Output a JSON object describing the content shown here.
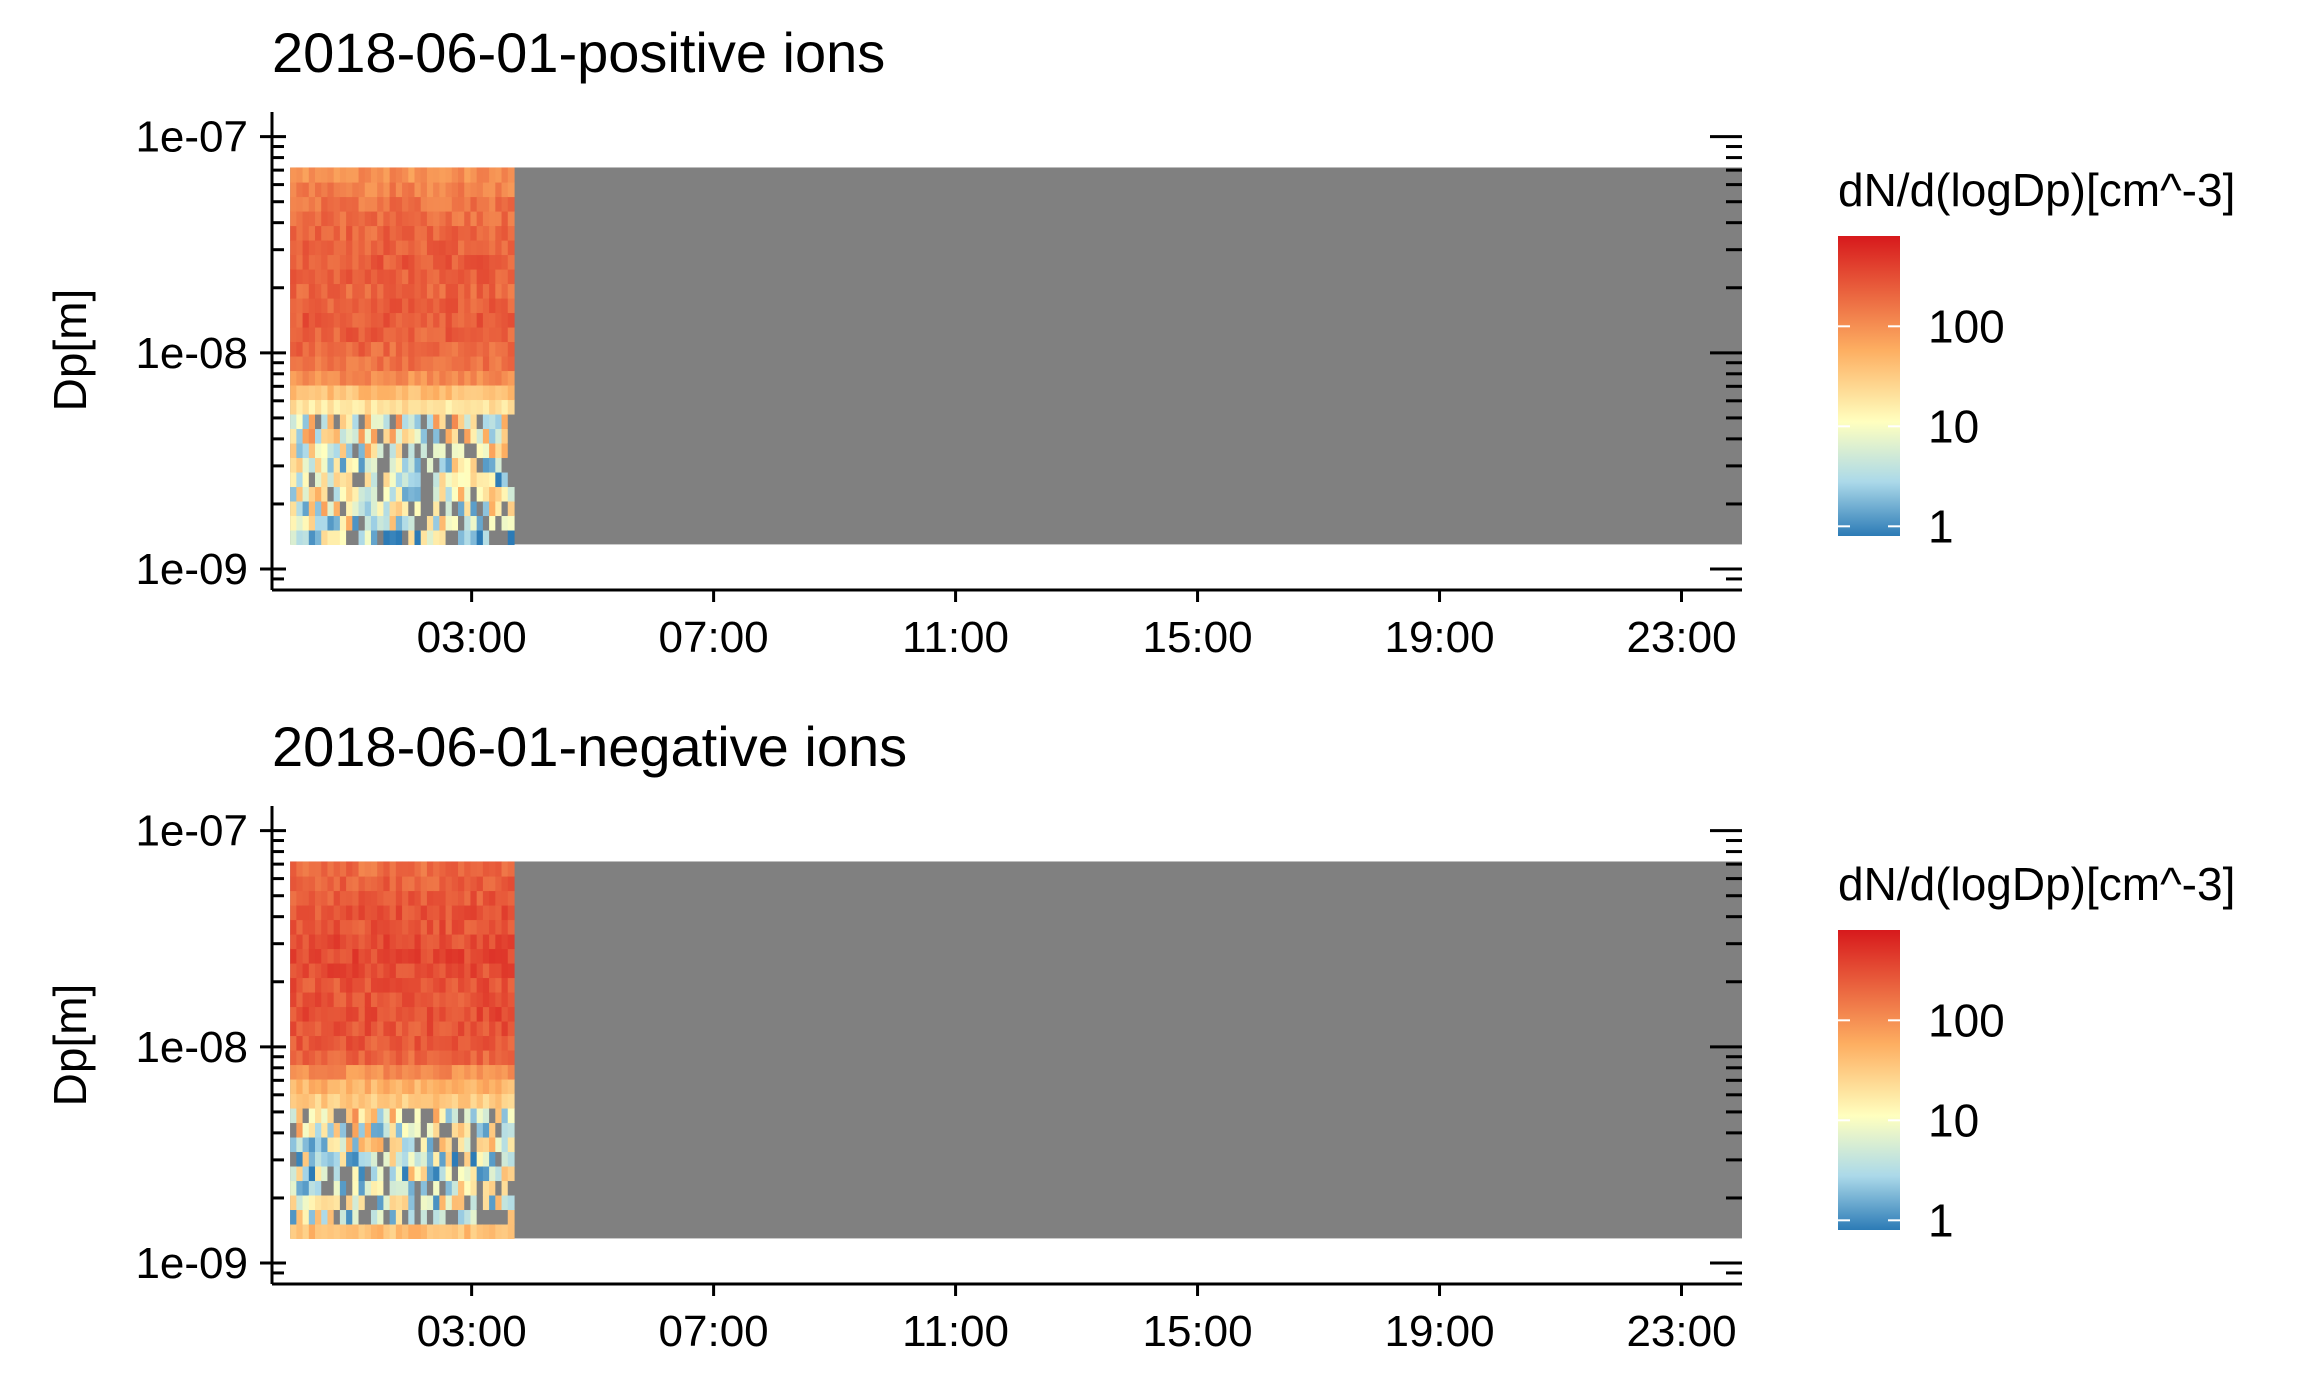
{
  "colors": {
    "nodata": "#808080",
    "palette": [
      "#2c7bb6",
      "#abd9e9",
      "#ffffbf",
      "#fdae61",
      "#d7191c"
    ]
  },
  "chart_data": [
    {
      "type": "heatmap",
      "title": "2018-06-01-positive ions",
      "ylabel": "Dp[m]",
      "xlabel": "",
      "x_ticks": [
        "03:00",
        "07:00",
        "11:00",
        "15:00",
        "19:00",
        "23:00"
      ],
      "x_tick_hours": [
        3,
        7,
        11,
        15,
        19,
        23
      ],
      "xlim_hours": [
        -0.3,
        24.0
      ],
      "y_scale": "log",
      "y_ticks": [
        "1e-07",
        "1e-08",
        "1e-09"
      ],
      "ylim": [
        8e-10,
        1.3e-07
      ],
      "data_extent": {
        "x_hours": [
          0.0,
          24.0
        ],
        "y": [
          1.3e-09,
          7.2e-08
        ]
      },
      "measured_until_hours": 3.7,
      "grid": false,
      "legend": {
        "title": "dN/d(logDp)[cm^-3]",
        "breaks": [
          "100",
          "10",
          "1"
        ],
        "break_values": [
          100,
          10,
          1
        ],
        "range": [
          0.8,
          800
        ],
        "placement": "right"
      },
      "profile_log10": [
        0.5,
        0.9,
        1.0,
        0.9,
        0.8,
        0.9,
        1.0,
        1.1,
        1.2,
        1.3,
        1.6,
        2.0,
        2.2,
        2.3,
        2.35,
        2.4,
        2.35,
        2.3,
        2.35,
        2.4,
        2.35,
        2.3,
        2.25,
        2.2,
        2.1,
        2.0
      ]
    },
    {
      "type": "heatmap",
      "title": "2018-06-01-negative ions",
      "ylabel": "Dp[m]",
      "xlabel": "",
      "x_ticks": [
        "03:00",
        "07:00",
        "11:00",
        "15:00",
        "19:00",
        "23:00"
      ],
      "x_tick_hours": [
        3,
        7,
        11,
        15,
        19,
        23
      ],
      "xlim_hours": [
        -0.3,
        24.0
      ],
      "y_scale": "log",
      "y_ticks": [
        "1e-07",
        "1e-08",
        "1e-09"
      ],
      "ylim": [
        8e-10,
        1.3e-07
      ],
      "data_extent": {
        "x_hours": [
          0.0,
          24.0
        ],
        "y": [
          1.3e-09,
          7.2e-08
        ]
      },
      "measured_until_hours": 3.7,
      "grid": false,
      "legend": {
        "title": "dN/d(logDp)[cm^-3]",
        "breaks": [
          "100",
          "10",
          "1"
        ],
        "break_values": [
          100,
          10,
          1
        ],
        "range": [
          0.8,
          800
        ],
        "placement": "right"
      },
      "profile_log10": [
        1.6,
        0.9,
        0.8,
        0.8,
        0.8,
        0.7,
        0.9,
        1.0,
        1.2,
        1.5,
        1.7,
        2.0,
        2.3,
        2.4,
        2.45,
        2.5,
        2.45,
        2.45,
        2.5,
        2.55,
        2.5,
        2.45,
        2.45,
        2.4,
        2.35,
        2.25
      ]
    }
  ]
}
